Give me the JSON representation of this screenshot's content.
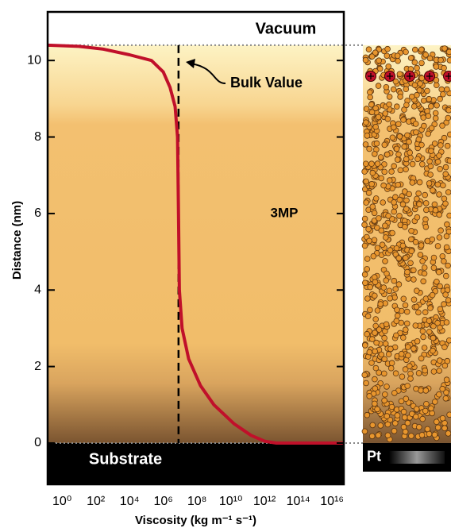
{
  "chart_data": {
    "type": "line",
    "x_scale": "log",
    "x_label": "Viscosity (kg m⁻¹ s⁻¹)",
    "y_label": "Distance (nm)",
    "x": [
      0.14,
      10,
      250,
      10000,
      200000,
      1000000,
      2500000,
      5000000,
      7000000,
      8000000,
      9000000,
      13000000,
      32000000,
      160000000,
      1000000000,
      16000000000,
      160000000000,
      1000000000000,
      5000000000000,
      50000000000000000
    ],
    "series": [
      {
        "color": "#c0102a",
        "values": [
          10.4,
          10.37,
          10.3,
          10.15,
          10.0,
          9.7,
          9.3,
          8.8,
          8.0,
          6.0,
          4.0,
          3.0,
          2.2,
          1.5,
          1.0,
          0.5,
          0.2,
          0.05,
          0,
          0
        ]
      }
    ],
    "xlim": [
      0.14,
      50000000000000000
    ],
    "xticks": [
      {
        "value": 1,
        "label": "10⁰"
      },
      {
        "value": 100,
        "label": "10²"
      },
      {
        "value": 10000,
        "label": "10⁴"
      },
      {
        "value": 1000000,
        "label": "10⁶"
      },
      {
        "value": 100000000,
        "label": "10⁸"
      },
      {
        "value": 10000000000,
        "label": "10¹⁰"
      },
      {
        "value": 1000000000000,
        "label": "10¹²"
      },
      {
        "value": 100000000000000,
        "label": "10¹⁴"
      },
      {
        "value": 10000000000000000,
        "label": "10¹⁶"
      }
    ],
    "ylim": [
      -1.08,
      11.27
    ],
    "yticks": [
      0,
      2,
      4,
      6,
      8,
      10
    ],
    "bulk_value": {
      "x": 8000000,
      "label": "Bulk Value"
    },
    "interfaces": [
      0,
      10.4
    ],
    "regions": {
      "top": "Vacuum",
      "middle": "3MP",
      "bottom": "Substrate",
      "electrode": "Pt"
    }
  }
}
